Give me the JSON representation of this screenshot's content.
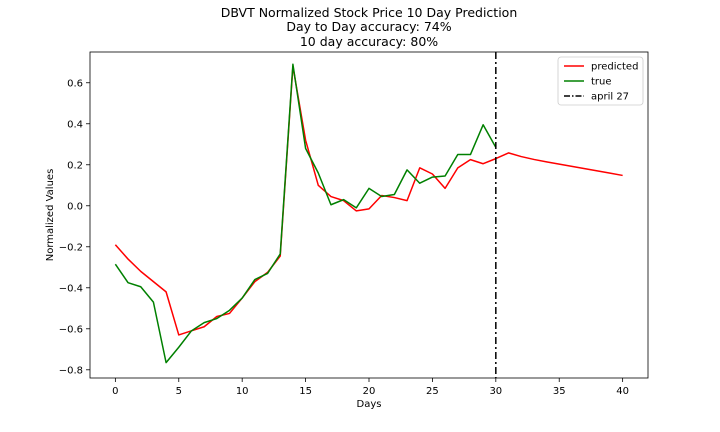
{
  "chart_data": {
    "type": "line",
    "title": "DBVT Normalized Stock Price 10 Day Prediction",
    "subtitle_lines": [
      "Day to Day accuracy: 74%",
      "10 day accuracy: 80%"
    ],
    "xlabel": "Days",
    "ylabel": "Normalized Values",
    "xlim": [
      -2,
      42
    ],
    "ylim": [
      -0.84,
      0.75
    ],
    "xticks": [
      0,
      5,
      10,
      15,
      20,
      25,
      30,
      35,
      40
    ],
    "yticks": [
      -0.8,
      -0.6,
      -0.4,
      -0.2,
      0.0,
      0.2,
      0.4,
      0.6
    ],
    "xtick_labels": [
      "0",
      "5",
      "10",
      "15",
      "20",
      "25",
      "30",
      "35",
      "40"
    ],
    "ytick_labels": [
      "−0.8",
      "−0.6",
      "−0.4",
      "−0.2",
      "0.0",
      "0.2",
      "0.4",
      "0.6"
    ],
    "grid": false,
    "legend_position": "top-right",
    "series": [
      {
        "name": "predicted",
        "color": "#ff0000",
        "x": [
          0,
          1,
          2,
          3,
          4,
          5,
          6,
          7,
          8,
          9,
          10,
          11,
          12,
          13,
          14,
          15,
          16,
          17,
          18,
          19,
          20,
          21,
          22,
          23,
          24,
          25,
          26,
          27,
          28,
          29,
          30,
          31,
          32,
          33,
          34,
          35,
          36,
          37,
          38,
          39,
          40
        ],
        "y": [
          -0.19,
          -0.26,
          -0.32,
          -0.37,
          -0.42,
          -0.63,
          -0.61,
          -0.59,
          -0.54,
          -0.525,
          -0.45,
          -0.37,
          -0.325,
          -0.245,
          0.68,
          0.32,
          0.1,
          0.045,
          0.025,
          -0.025,
          -0.015,
          0.05,
          0.04,
          0.025,
          0.185,
          0.155,
          0.085,
          0.185,
          0.225,
          0.205,
          0.23,
          0.258,
          0.24,
          0.226,
          0.214,
          0.203,
          0.192,
          0.181,
          0.17,
          0.159,
          0.148
        ]
      },
      {
        "name": "true",
        "color": "#008000",
        "x": [
          0,
          1,
          2,
          3,
          4,
          5,
          6,
          7,
          8,
          9,
          10,
          11,
          12,
          13,
          14,
          15,
          16,
          17,
          18,
          19,
          20,
          21,
          22,
          23,
          24,
          25,
          26,
          27,
          28,
          29,
          30
        ],
        "y": [
          -0.285,
          -0.375,
          -0.395,
          -0.47,
          -0.765,
          -0.69,
          -0.61,
          -0.57,
          -0.55,
          -0.51,
          -0.45,
          -0.36,
          -0.33,
          -0.235,
          0.69,
          0.28,
          0.16,
          0.005,
          0.03,
          -0.01,
          0.085,
          0.045,
          0.055,
          0.175,
          0.11,
          0.14,
          0.145,
          0.25,
          0.25,
          0.395,
          0.285
        ]
      }
    ],
    "vline": {
      "name": "april 27",
      "x": 30,
      "color": "#000000",
      "style": "dash-dot"
    }
  }
}
